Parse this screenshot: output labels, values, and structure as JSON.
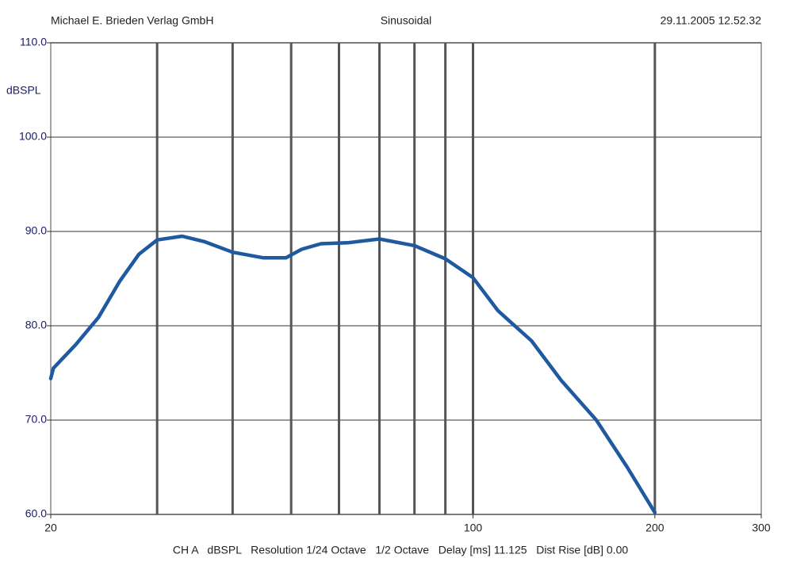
{
  "header": {
    "left": "Michael E. Brieden Verlag GmbH",
    "center": "Sinusoidal",
    "right": "29.11.2005 12.52.32"
  },
  "footer": "CH A   dBSPL   Resolution 1/24 Octave   1/2 Octave   Delay [ms] 11.125   Dist Rise [dB] 0.00",
  "chart_data": {
    "type": "line",
    "ylabel": "dBSPL",
    "xscale": "log",
    "x": [
      20,
      20.2,
      22,
      24,
      26,
      28,
      30,
      33,
      36,
      40,
      45,
      49,
      52,
      56,
      62,
      70,
      80,
      90,
      100,
      110,
      125,
      140,
      160,
      180,
      200
    ],
    "series": [
      {
        "name": "CH A",
        "color": "#1f5aa0",
        "values": [
          74.4,
          75.5,
          78.0,
          80.9,
          84.7,
          87.6,
          89.1,
          89.5,
          88.9,
          87.8,
          87.2,
          87.2,
          88.1,
          88.7,
          88.8,
          89.2,
          88.5,
          87.1,
          85.1,
          81.6,
          78.4,
          74.2,
          70.0,
          65.0,
          60.2
        ]
      }
    ],
    "xlim": [
      20,
      300
    ],
    "xticks": [
      20,
      100,
      200,
      300
    ],
    "x_grid_lines": [
      30,
      40,
      50,
      60,
      70,
      80,
      90,
      100,
      200
    ],
    "ylim": [
      60,
      110
    ],
    "yticks": [
      {
        "value": 60,
        "label": "60.0"
      },
      {
        "value": 70,
        "label": "70.0"
      },
      {
        "value": 80,
        "label": "80.0"
      },
      {
        "value": 90,
        "label": "90.0"
      },
      {
        "value": 100,
        "label": "100.0"
      },
      {
        "value": 110,
        "label": "110.0"
      }
    ],
    "grid": true
  }
}
